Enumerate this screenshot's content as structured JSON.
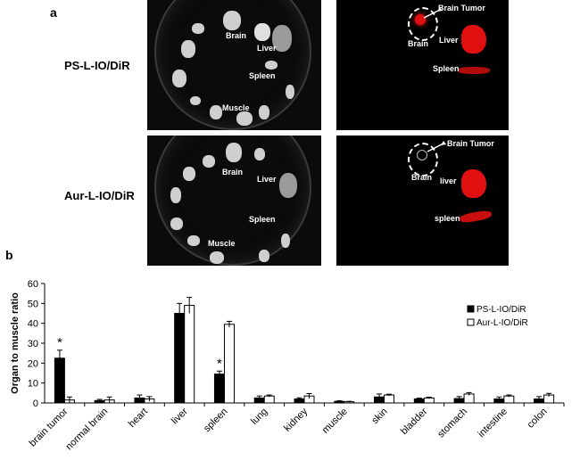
{
  "panel_a": {
    "label": "a",
    "rows": [
      {
        "name": "PS-L-IO/DiR",
        "photo_labels": [
          "Brain",
          "Liver",
          "Spleen",
          "Muscle"
        ],
        "fluor_labels": [
          "Brain Tumor",
          "Brain",
          "Liver",
          "Spleen"
        ]
      },
      {
        "name": "Aur-L-IO/DiR",
        "photo_labels": [
          "Brain",
          "Liver",
          "Spleen",
          "Muscle"
        ],
        "fluor_labels": [
          "Brain Tumor",
          "Brain",
          "liver",
          "spleen"
        ]
      }
    ]
  },
  "panel_b": {
    "label": "b"
  },
  "colors": {
    "series1": "#000000",
    "series2": "#ffffff",
    "fluorescence": "#e01010"
  },
  "chart_data": {
    "type": "bar",
    "ylabel": "Organ to muscle ratio",
    "ylim": [
      0,
      60
    ],
    "yticks": [
      "0",
      "10",
      "20",
      "30",
      "40",
      "50",
      "60"
    ],
    "categories": [
      "brain tumor",
      "normal brain",
      "heart",
      "liver",
      "spleen",
      "lung",
      "kidney",
      "muscle",
      "skin",
      "bladder",
      "stomach",
      "intestine",
      "colon"
    ],
    "series": [
      {
        "name": "PS-L-IO/DiR",
        "values": [
          22.5,
          1.2,
          2.5,
          45,
          14.5,
          2.5,
          2,
          0.8,
          3,
          2,
          2.2,
          2,
          2
        ],
        "errors": [
          4,
          0.6,
          1.5,
          5,
          1.5,
          1,
          0.6,
          0.3,
          1.5,
          0.4,
          1,
          1,
          1.2
        ]
      },
      {
        "name": "Aur-L-IO/DiR",
        "values": [
          1.5,
          1.5,
          2,
          49,
          39.5,
          3.5,
          3.5,
          0.6,
          4,
          2.5,
          4.5,
          3.5,
          4
        ],
        "errors": [
          1.5,
          1.5,
          1.2,
          4,
          1.5,
          0.5,
          1.2,
          0.2,
          0.4,
          0.4,
          0.7,
          0.5,
          0.8
        ]
      }
    ],
    "annotations": [
      {
        "text": "*",
        "category": "brain tumor"
      },
      {
        "text": "*",
        "category": "spleen"
      }
    ],
    "legend_placement": "right"
  }
}
